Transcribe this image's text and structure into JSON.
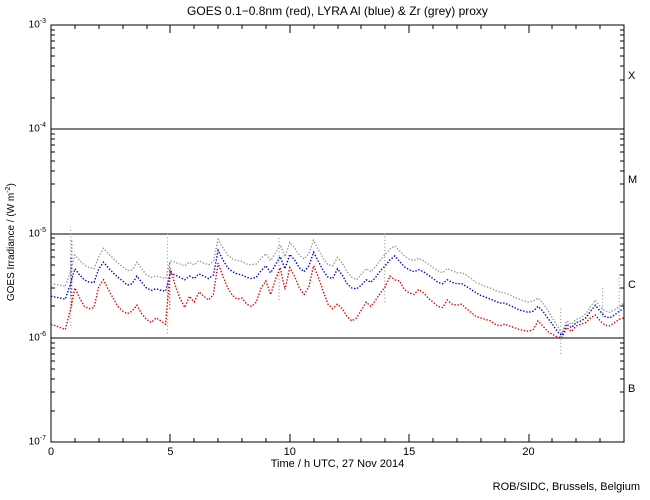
{
  "page": {
    "background": "#ffffff",
    "text_color": "#000000"
  },
  "header": {
    "title": "GOES 0.1−0.8nm (red), LYRA Al (blue) & Zr (grey) proxy"
  },
  "footer": {
    "credit": "ROB/SIDC, Brussels, Belgium"
  },
  "chart_data": {
    "type": "line",
    "title": "GOES 0.1−0.8nm (red), LYRA Al (blue) & Zr (grey) proxy",
    "xlabel": "Time / h UTC, 27 Nov 2014",
    "ylabel_parts": {
      "pre": "GOES Irradiance / (W m",
      "sup": "-2",
      "post": ")"
    },
    "grid": "horizontal decade lines only",
    "legend": "encoded in title colors",
    "x_axis": {
      "min": 0,
      "max": 24,
      "major_tick_step": 5,
      "minor_tick_step": 1,
      "tick_values": [
        0,
        5,
        10,
        15,
        20
      ],
      "tick_labels": [
        "0",
        "5",
        "10",
        "15",
        "20"
      ]
    },
    "y_axis": {
      "scale": "log",
      "min": 1e-07,
      "max": 0.001,
      "tick_labels": [
        {
          "base": "10",
          "exp": "-3",
          "value": 0.001
        },
        {
          "base": "10",
          "exp": "-4",
          "value": 0.0001
        },
        {
          "base": "10",
          "exp": "-5",
          "value": 1e-05
        },
        {
          "base": "10",
          "exp": "-6",
          "value": 1e-06
        },
        {
          "base": "10",
          "exp": "-7",
          "value": 1e-07
        }
      ],
      "gridline_values": [
        0.0001,
        1e-05,
        1e-06
      ]
    },
    "flare_class_labels": [
      {
        "text": "X",
        "value": 0.000316
      },
      {
        "text": "M",
        "value": 3.16e-05
      },
      {
        "text": "C",
        "value": 3.16e-06
      },
      {
        "text": "B",
        "value": 3.16e-07
      }
    ],
    "series": [
      {
        "name": "GOES 0.1-0.8nm",
        "color_name": "red",
        "color": "#dd0000",
        "t_start": 0,
        "t_step": 0.2,
        "scale": 1e-06,
        "values": [
          1.35,
          1.3,
          1.25,
          1.2,
          1.8,
          3.0,
          2.4,
          2.0,
          1.9,
          1.95,
          3.1,
          3.6,
          2.9,
          2.4,
          2.0,
          1.8,
          1.7,
          1.8,
          2.05,
          1.7,
          1.5,
          1.4,
          1.55,
          1.45,
          1.35,
          4.6,
          3.2,
          2.4,
          1.95,
          2.5,
          2.2,
          2.75,
          2.5,
          2.3,
          2.6,
          5.2,
          3.9,
          3.0,
          2.55,
          2.35,
          2.4,
          2.1,
          2.0,
          2.2,
          3.0,
          3.5,
          2.6,
          3.6,
          4.7,
          2.9,
          4.7,
          3.9,
          3.0,
          2.6,
          3.1,
          4.9,
          3.8,
          2.8,
          2.1,
          1.9,
          2.1,
          1.9,
          1.6,
          1.45,
          1.55,
          1.85,
          2.2,
          2.0,
          2.3,
          2.7,
          3.1,
          3.9,
          3.6,
          3.5,
          2.9,
          2.7,
          2.6,
          2.9,
          2.7,
          2.4,
          2.2,
          2.0,
          1.95,
          2.3,
          2.1,
          2.05,
          2.1,
          1.9,
          1.75,
          1.6,
          1.55,
          1.5,
          1.45,
          1.35,
          1.3,
          1.35,
          1.3,
          1.25,
          1.2,
          1.18,
          1.15,
          1.2,
          1.45,
          1.3,
          1.15,
          1.08,
          1.02,
          1.0,
          1.25,
          1.15,
          1.3,
          1.35,
          1.4,
          1.55,
          1.65,
          1.45,
          1.32,
          1.3,
          1.4,
          1.5,
          1.55
        ]
      },
      {
        "name": "LYRA Al proxy",
        "color_name": "blue",
        "color": "#0000cc",
        "t_start": 0,
        "t_step": 0.2,
        "scale": 1e-06,
        "values": [
          2.5,
          2.45,
          2.4,
          2.35,
          3.2,
          4.6,
          4.0,
          3.6,
          3.4,
          3.4,
          4.6,
          5.3,
          4.7,
          4.2,
          3.8,
          3.5,
          3.2,
          3.3,
          3.9,
          3.4,
          3.0,
          2.85,
          2.95,
          2.85,
          2.8,
          4.2,
          4.0,
          3.8,
          3.6,
          3.9,
          3.7,
          4.1,
          3.9,
          3.7,
          4.0,
          6.9,
          5.6,
          4.7,
          4.3,
          4.1,
          4.0,
          3.8,
          3.7,
          3.8,
          4.4,
          4.9,
          4.2,
          5.0,
          6.0,
          4.6,
          6.3,
          5.6,
          4.7,
          4.3,
          4.9,
          6.6,
          5.4,
          4.4,
          3.8,
          3.7,
          4.6,
          4.0,
          3.3,
          3.0,
          2.95,
          3.2,
          3.6,
          3.4,
          3.8,
          4.4,
          4.9,
          5.6,
          6.1,
          5.4,
          4.8,
          4.5,
          4.3,
          4.5,
          4.3,
          4.0,
          3.7,
          3.4,
          3.3,
          3.6,
          3.4,
          3.3,
          3.3,
          3.1,
          2.9,
          2.7,
          2.55,
          2.45,
          2.35,
          2.25,
          2.15,
          2.15,
          2.05,
          1.95,
          1.85,
          1.8,
          1.75,
          1.8,
          2.0,
          1.8,
          1.55,
          1.35,
          1.15,
          1.05,
          1.35,
          1.25,
          1.4,
          1.45,
          1.55,
          1.8,
          2.05,
          1.8,
          1.6,
          1.55,
          1.65,
          1.8,
          1.9
        ]
      },
      {
        "name": "LYRA Zr proxy",
        "color_name": "grey",
        "color": "#999999",
        "t_start": 0,
        "t_step": 0.2,
        "scale": 1e-06,
        "values": [
          3.3,
          3.25,
          3.2,
          3.1,
          4.2,
          6.2,
          5.5,
          5.0,
          4.7,
          4.6,
          6.0,
          7.2,
          6.4,
          5.8,
          5.2,
          4.8,
          4.4,
          4.5,
          5.3,
          4.6,
          4.0,
          3.8,
          3.9,
          3.8,
          3.7,
          5.5,
          5.3,
          5.1,
          4.9,
          5.3,
          5.0,
          5.5,
          5.2,
          5.0,
          5.4,
          8.8,
          7.3,
          6.2,
          5.7,
          5.5,
          5.4,
          5.1,
          5.0,
          5.1,
          5.8,
          6.4,
          5.5,
          6.5,
          7.8,
          6.0,
          8.2,
          7.3,
          6.2,
          5.7,
          6.4,
          8.6,
          7.0,
          5.8,
          5.0,
          4.9,
          5.9,
          5.2,
          4.3,
          3.8,
          3.6,
          4.1,
          4.6,
          4.3,
          4.8,
          5.6,
          6.3,
          7.1,
          7.6,
          6.8,
          6.1,
          5.7,
          5.5,
          5.8,
          5.5,
          5.1,
          4.7,
          4.4,
          4.2,
          4.6,
          4.4,
          4.2,
          4.2,
          4.0,
          3.7,
          3.4,
          3.25,
          3.1,
          3.0,
          2.85,
          2.75,
          2.7,
          2.6,
          2.45,
          2.35,
          2.25,
          2.2,
          2.25,
          2.4,
          2.15,
          1.85,
          1.55,
          1.3,
          1.1,
          1.45,
          1.35,
          1.5,
          1.55,
          1.7,
          2.0,
          2.3,
          2.0,
          1.8,
          1.75,
          1.85,
          2.0,
          2.15
        ]
      }
    ],
    "artifact_spikes": [
      {
        "t": 0.82,
        "from": 1.3e-06,
        "to": 1.16e-05,
        "color": "#999999"
      },
      {
        "t": 0.84,
        "from": 2.5e-06,
        "to": 6e-06,
        "color": "#0000cc"
      },
      {
        "t": 0.87,
        "from": 2e-06,
        "to": 8.7e-06,
        "color": "#dd0000"
      },
      {
        "t": 4.88,
        "from": 1.1e-06,
        "to": 1.03e-05,
        "color": "#999999"
      },
      {
        "t": 4.97,
        "from": 1.9e-06,
        "to": 5.2e-06,
        "color": "#dd0000"
      },
      {
        "t": 9.55,
        "from": 2.3e-06,
        "to": 9.2e-06,
        "color": "#999999"
      },
      {
        "t": 13.98,
        "from": 2.2e-06,
        "to": 1e-05,
        "color": "#999999"
      },
      {
        "t": 21.35,
        "from": 7e-07,
        "to": 1.9e-06,
        "color": "#999999"
      },
      {
        "t": 23.1,
        "from": 1.6e-06,
        "to": 3e-06,
        "color": "#999999"
      },
      {
        "t": 23.8,
        "from": 1.5e-06,
        "to": 4.2e-06,
        "color": "#999999"
      }
    ]
  }
}
